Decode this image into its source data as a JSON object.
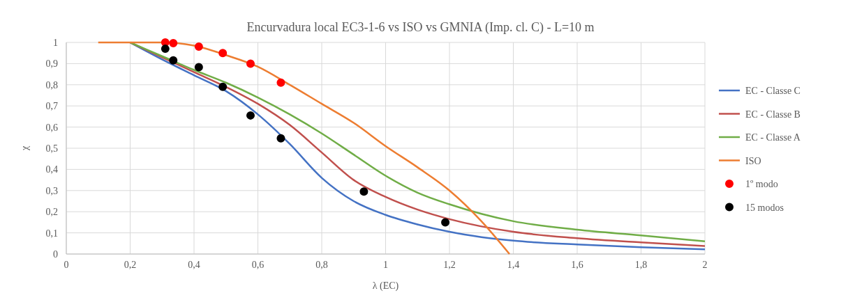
{
  "chart_data": {
    "type": "line",
    "title": "Encurvadura local EC3-1-6 vs ISO vs GMNIA (Imp. cl. C) - L=10 m",
    "xlabel": "λ (EC)",
    "ylabel": "χ",
    "xlim": [
      0,
      2
    ],
    "ylim": [
      0,
      1
    ],
    "xticks": [
      {
        "value": 0,
        "label": "0"
      },
      {
        "value": 0.2,
        "label": "0,2"
      },
      {
        "value": 0.4,
        "label": "0,4"
      },
      {
        "value": 0.6,
        "label": "0,6"
      },
      {
        "value": 0.8,
        "label": "0,8"
      },
      {
        "value": 1,
        "label": "1"
      },
      {
        "value": 1.2,
        "label": "1,2"
      },
      {
        "value": 1.4,
        "label": "1,4"
      },
      {
        "value": 1.6,
        "label": "1,6"
      },
      {
        "value": 1.8,
        "label": "1,8"
      },
      {
        "value": 2,
        "label": "2"
      }
    ],
    "yticks": [
      {
        "value": 0,
        "label": "0"
      },
      {
        "value": 0.1,
        "label": "0,1"
      },
      {
        "value": 0.2,
        "label": "0,2"
      },
      {
        "value": 0.3,
        "label": "0,3"
      },
      {
        "value": 0.4,
        "label": "0,4"
      },
      {
        "value": 0.5,
        "label": "0,5"
      },
      {
        "value": 0.6,
        "label": "0,6"
      },
      {
        "value": 0.7,
        "label": "0,7"
      },
      {
        "value": 0.8,
        "label": "0,8"
      },
      {
        "value": 0.9,
        "label": "0,9"
      },
      {
        "value": 1,
        "label": "1"
      }
    ],
    "grid": true,
    "legend": "right",
    "marker": "none",
    "series": [
      {
        "name": "EC - Classe C",
        "color": "#4472c4",
        "x": [
          0.2,
          0.3,
          0.4,
          0.5,
          0.6,
          0.7,
          0.8,
          0.9,
          1.0,
          1.1,
          1.2,
          1.3,
          1.4,
          1.6,
          1.8,
          2.0
        ],
        "values": [
          1,
          0.92,
          0.845,
          0.77,
          0.66,
          0.52,
          0.36,
          0.25,
          0.185,
          0.14,
          0.105,
          0.08,
          0.063,
          0.045,
          0.032,
          0.022
        ]
      },
      {
        "name": "EC - Classe B",
        "color": "#c0504d",
        "x": [
          0.2,
          0.3,
          0.4,
          0.5,
          0.6,
          0.7,
          0.8,
          0.9,
          1.0,
          1.1,
          1.2,
          1.4,
          1.6,
          1.8,
          2.0
        ],
        "values": [
          1,
          0.93,
          0.86,
          0.79,
          0.71,
          0.61,
          0.48,
          0.35,
          0.27,
          0.21,
          0.165,
          0.105,
          0.075,
          0.055,
          0.038
        ]
      },
      {
        "name": "EC - Classe A",
        "color": "#70ad47",
        "x": [
          0.2,
          0.3,
          0.4,
          0.5,
          0.6,
          0.7,
          0.8,
          0.9,
          1.0,
          1.1,
          1.2,
          1.3,
          1.4,
          1.6,
          1.8,
          2.0
        ],
        "values": [
          1,
          0.935,
          0.87,
          0.81,
          0.74,
          0.66,
          0.57,
          0.47,
          0.37,
          0.29,
          0.235,
          0.19,
          0.155,
          0.115,
          0.088,
          0.06
        ]
      },
      {
        "name": "ISO",
        "color": "#ed7d31",
        "x": [
          0.1,
          0.2,
          0.3,
          0.4,
          0.5,
          0.6,
          0.7,
          0.8,
          0.9,
          1.0,
          1.1,
          1.2,
          1.3,
          1.388
        ],
        "values": [
          1,
          1,
          1,
          0.985,
          0.94,
          0.885,
          0.8,
          0.71,
          0.62,
          0.51,
          0.41,
          0.3,
          0.155,
          0
        ]
      },
      {
        "name": "1º modo",
        "type": "scatter",
        "marker": "circle",
        "color": "#ff0000",
        "x": [
          0.31,
          0.335,
          0.415,
          0.49,
          0.577,
          0.672
        ],
        "values": [
          1.0,
          0.997,
          0.98,
          0.95,
          0.9,
          0.81
        ]
      },
      {
        "name": "15 modos",
        "type": "scatter",
        "marker": "circle",
        "color": "#000000",
        "x": [
          0.31,
          0.335,
          0.415,
          0.49,
          0.577,
          0.672,
          0.932,
          1.187
        ],
        "values": [
          0.97,
          0.915,
          0.883,
          0.79,
          0.655,
          0.547,
          0.295,
          0.15
        ]
      }
    ]
  }
}
